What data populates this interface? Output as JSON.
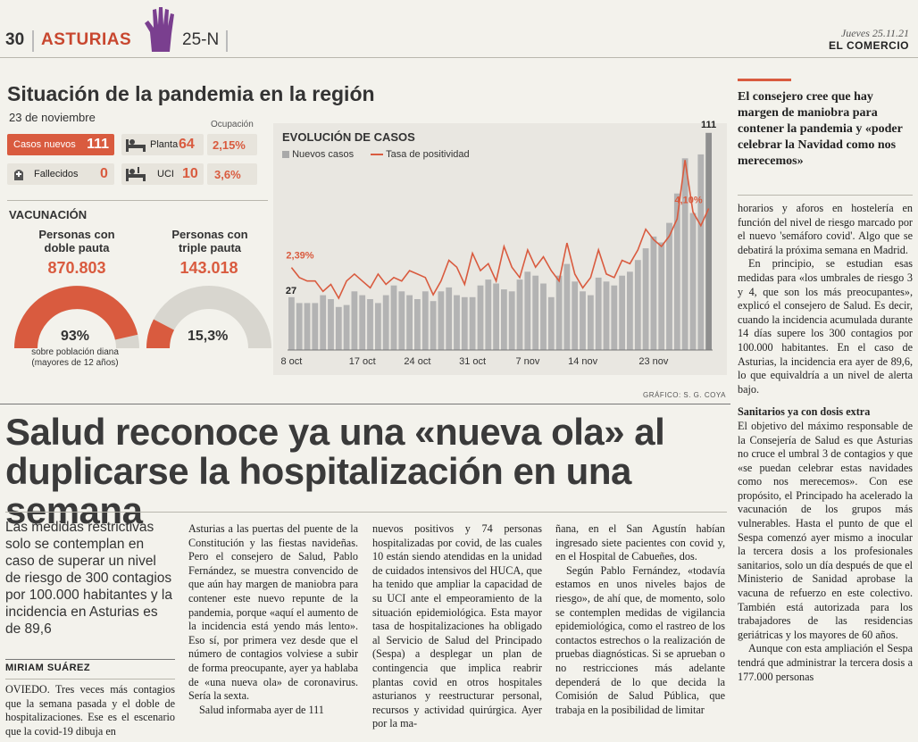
{
  "header": {
    "page_number": "30",
    "section": "ASTURIAS",
    "tag": "25-N",
    "date": "Jueves 25.11.21",
    "newspaper": "EL COMERCIO",
    "hand_icon": "hand-icon",
    "accent_color": "#d95b3f"
  },
  "infographic": {
    "title": "Situación de la pandemia en la región",
    "date": "23 de noviembre",
    "occupancy_label": "Ocupación",
    "stats": {
      "new_cases_label": "Casos nuevos",
      "new_cases_value": "111",
      "deaths_label": "Fallecidos",
      "deaths_value": "0",
      "ward_label": "Planta",
      "ward_value": "64",
      "ward_pct": "2,15%",
      "icu_label": "UCI",
      "icu_value": "10",
      "icu_pct": "3,6%"
    },
    "vaccination": {
      "title": "VACUNACIÓN",
      "double_label": "Personas con doble pauta",
      "double_value": "870.803",
      "double_pct": "93%",
      "double_fraction": 0.93,
      "triple_label": "Personas con triple pauta",
      "triple_value": "143.018",
      "triple_pct": "15,3%",
      "triple_fraction": 0.153,
      "note": "sobre población diana (mayores de 12 años)"
    },
    "credit": "GRÁFICO: S. G. COYA"
  },
  "chart_data": {
    "type": "bar",
    "title": "EVOLUCIÓN DE CASOS",
    "legend": [
      "Nuevos casos",
      "Tasa de positividad"
    ],
    "x_tick_labels": [
      "8 oct",
      "17 oct",
      "24 oct",
      "31 oct",
      "7 nov",
      "14 nov",
      "23 nov"
    ],
    "series": [
      {
        "name": "Nuevos casos",
        "type": "bar",
        "color": "#a9a9a9",
        "values": [
          27,
          24,
          24,
          24,
          28,
          26,
          22,
          23,
          30,
          28,
          26,
          24,
          28,
          33,
          30,
          28,
          26,
          30,
          25,
          30,
          32,
          28,
          27,
          27,
          33,
          36,
          34,
          31,
          30,
          36,
          40,
          38,
          34,
          27,
          38,
          44,
          35,
          30,
          28,
          37,
          35,
          33,
          38,
          40,
          46,
          52,
          58,
          55,
          65,
          80,
          98,
          70,
          100,
          111
        ]
      },
      {
        "name": "Tasa de positividad",
        "type": "line",
        "color": "#d95b3f",
        "values": [
          2.39,
          2.1,
          2.0,
          2.0,
          1.7,
          1.9,
          1.5,
          2.0,
          2.2,
          2.0,
          1.8,
          2.2,
          1.9,
          2.1,
          2.0,
          2.3,
          2.2,
          2.1,
          1.6,
          2.0,
          2.6,
          2.4,
          1.9,
          2.8,
          2.3,
          2.5,
          2.0,
          3.0,
          2.4,
          2.1,
          2.9,
          2.4,
          2.7,
          2.3,
          2.0,
          3.1,
          2.2,
          1.8,
          2.1,
          2.9,
          2.2,
          2.1,
          2.6,
          2.5,
          2.9,
          3.5,
          3.2,
          3.0,
          3.3,
          3.8,
          5.5,
          4.0,
          3.6,
          4.1
        ]
      }
    ],
    "annotations": [
      "27",
      "111",
      "2,39%",
      "4,10%"
    ]
  },
  "article": {
    "headline": "Salud reconoce ya una «nueva ola» al duplicarse la hospitalización en una semana",
    "lede": "Las medidas restrictivas solo se contemplan en caso de superar un nivel de riesgo de 300 contagios por 100.000 habitantes y la incidencia en Asturias es de 89,6",
    "author": "MIRIAM SUÁREZ",
    "col1": "OVIEDO. Tres veces más contagios que la semana pasada y el doble de hospitalizaciones. Ese es el escenario que la covid-19 dibuja en",
    "col2_p1": "Asturias a las puertas del puente de la Constitución y las fiestas navideñas. Pero el consejero de Salud, Pablo Fernández, se muestra convencido de que aún hay margen de maniobra para contener este nuevo repunte de la pandemia, porque «aquí el aumento de la incidencia está yendo más lento». Eso sí, por primera vez desde que el número de contagios volviese a subir de forma preocupante, ayer ya hablaba de «una nueva ola» de coronavirus. Sería la sexta.",
    "col2_p2": "Salud informaba ayer de 111",
    "col3": "nuevos positivos y 74 personas hospitalizadas por covid, de las cuales 10 están siendo atendidas en la unidad de cuidados intensivos del HUCA, que ha tenido que ampliar la capacidad de su UCI ante el empeoramiento de la situación epidemiológica. Esta mayor tasa de hospitalizaciones ha obligado al Servicio de Salud del Principado (Sespa) a desplegar un plan de contingencia que implica reabrir plantas covid en otros hospitales asturianos y reestructurar personal, recursos y actividad quirúrgica. Ayer por la ma-",
    "col4_p1": "ñana, en el San Agustín habían ingresado siete pacientes con covid y, en el Hospital de Cabueñes, dos.",
    "col4_p2": "Según Pablo Fernández, «todavía estamos en unos niveles bajos de riesgo», de ahí que, de momento, solo se contemplen medidas de vigilancia epidemiológica, como el rastreo de los contactos estrechos o la realización de pruebas diagnósticas. Si se aprueban o no restricciones más adelante dependerá de lo que decida la Comisión de Salud Pública, que trabaja en la posibilidad de limitar",
    "sidebar_quote": "El consejero cree que hay margen de maniobra para contener la pandemia y «poder celebrar la Navidad como nos merecemos»",
    "col5_p1": "horarios y aforos en hostelería en función del nivel de riesgo marcado por el nuevo 'semáforo covid'. Algo que se debatirá la próxima semana en Madrid.",
    "col5_p2": "En principio, se estudian esas medidas para «los umbrales de riesgo 3 y 4, que son los más preocupantes», explicó el consejero de Salud. Es decir, cuando la incidencia acumulada durante 14 días supere los 300 contagios por 100.000 habitantes. En el caso de Asturias, la incidencia era ayer de 89,6, lo que equivaldría a un nivel de alerta bajo.",
    "col5_subhead": "Sanitarios ya con dosis extra",
    "col5_p3": "El objetivo del máximo responsable de la Consejería de Salud es que Asturias no cruce el umbral 3 de contagios y que «se puedan celebrar estas navidades como nos merecemos». Con ese propósito, el Principado ha acelerado la vacunación de los grupos más vulnerables. Hasta el punto de que el Sespa comenzó ayer mismo a inocular la tercera dosis a los profesionales sanitarios, solo un día después de que el Ministerio de Sanidad aprobase la vacuna de refuerzo en este colectivo. También está autorizada para los trabajadores de las residencias geriátricas y los mayores de 60 años.",
    "col5_p4": "Aunque con esta ampliación el Sespa tendrá que administrar la tercera dosis a 177.000 personas"
  }
}
